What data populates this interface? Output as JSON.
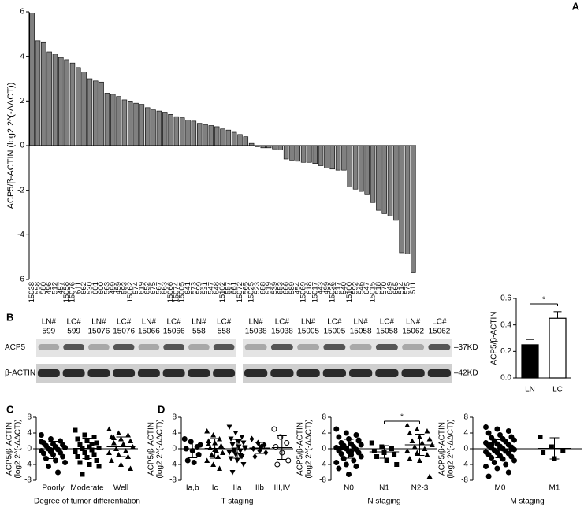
{
  "chart_data": [
    {
      "type": "bar",
      "panel": "A",
      "ylabel": "ACP5/β-ACTIN (log2 2^(-ΔΔCT))",
      "color": "#808080",
      "categories": [
        "15038",
        "558",
        "580",
        "496",
        "512",
        "457",
        "15058",
        "15076",
        "611",
        "662",
        "530",
        "601",
        "600",
        "563",
        "499",
        "459",
        "593",
        "15062",
        "574",
        "619",
        "652",
        "675",
        "567",
        "663",
        "15066",
        "15074",
        "15005",
        "641",
        "573",
        "599",
        "531",
        "547",
        "648",
        "15102",
        "557",
        "661",
        "15072",
        "565",
        "15025",
        "523",
        "688",
        "519",
        "539",
        "653",
        "666",
        "589",
        "454",
        "15069",
        "618",
        "15017",
        "443",
        "499",
        "15036",
        "517",
        "540",
        "15100",
        "592",
        "546",
        "647",
        "15015",
        "518",
        "570",
        "649",
        "665",
        "514",
        "575",
        "511"
      ],
      "values": [
        5.95,
        4.7,
        4.65,
        4.2,
        4.1,
        3.95,
        3.85,
        3.7,
        3.5,
        3.3,
        3.0,
        2.9,
        2.85,
        2.35,
        2.3,
        2.2,
        2.05,
        2.0,
        1.9,
        1.85,
        1.7,
        1.6,
        1.55,
        1.5,
        1.4,
        1.3,
        1.25,
        1.15,
        1.1,
        1.0,
        0.95,
        0.9,
        0.85,
        0.75,
        0.7,
        0.6,
        0.5,
        0.4,
        0.1,
        -0.05,
        -0.1,
        -0.1,
        -0.15,
        -0.2,
        -0.6,
        -0.65,
        -0.7,
        -0.75,
        -0.75,
        -0.8,
        -0.9,
        -1.0,
        -1.05,
        -1.1,
        -1.1,
        -1.85,
        -1.95,
        -2.05,
        -2.2,
        -2.55,
        -2.9,
        -3.05,
        -3.15,
        -3.35,
        -4.8,
        -4.85,
        -5.7
      ],
      "ylim": [
        -6,
        6
      ],
      "yticks": [
        -6,
        -4,
        -2,
        0,
        2,
        4,
        6
      ]
    },
    {
      "type": "blot",
      "panel": "B",
      "lanes": [
        [
          "LN#",
          "599"
        ],
        [
          "LC#",
          "599"
        ],
        [
          "LN#",
          "15076"
        ],
        [
          "LC#",
          "15076"
        ],
        [
          "LN#",
          "15066"
        ],
        [
          "LC#",
          "15066"
        ],
        [
          "LN#",
          "558"
        ],
        [
          "LC#",
          "558"
        ],
        [
          "LN#",
          "15038"
        ],
        [
          "LC#",
          "15038"
        ],
        [
          "LN#",
          "15005"
        ],
        [
          "LC#",
          "15005"
        ],
        [
          "LN#",
          "15058"
        ],
        [
          "LC#",
          "15058"
        ],
        [
          "LN#",
          "15062"
        ],
        [
          "LC#",
          "15062"
        ]
      ],
      "rows": [
        "ACP5",
        "β-ACTIN"
      ],
      "sizes": [
        "–37KD",
        "–42KD"
      ]
    },
    {
      "type": "bar",
      "ylabel": "ACP5/β-ACTIN",
      "categories": [
        "LN",
        "LC"
      ],
      "values": [
        0.25,
        0.45
      ],
      "errors": [
        0.04,
        0.05
      ],
      "colors": [
        "#000000",
        "#ffffff"
      ],
      "ylim": [
        0,
        0.6
      ],
      "yticks": [
        {
          "value": 0,
          "label": "0.0"
        },
        0.2,
        0.4,
        0.6
      ],
      "significance": "*"
    },
    {
      "type": "strip",
      "panel": "C",
      "ylabel": [
        "ACP5/β-ACTIN",
        "(log2 2^(-ΔΔCT))"
      ],
      "xlabel": "Degree of tumor differentiation",
      "ylim": [
        -8,
        8
      ],
      "yticks": [
        -8,
        -4,
        0,
        4,
        8
      ],
      "groups": [
        {
          "name": "Poorly",
          "marker": "circle",
          "values": [
            3.5,
            2.5,
            2,
            1.5,
            1.2,
            1,
            0.8,
            0.5,
            0.3,
            0,
            -0.2,
            -0.5,
            -0.8,
            -1,
            -1.2,
            -1.5,
            -2,
            -2.5,
            -3,
            -3.5,
            -4.5,
            -6,
            1.8,
            -0.3
          ],
          "mean": -0.3,
          "sd": 2.2
        },
        {
          "name": "Moderate",
          "marker": "square",
          "values": [
            4.7,
            3.5,
            3,
            2.5,
            2,
            1.5,
            1,
            0.5,
            0.2,
            0,
            -0.3,
            -0.8,
            -1,
            -1.5,
            -2,
            -2.2,
            -3,
            -3.5,
            -4,
            -4.5,
            -6.5,
            1.2,
            -0.5
          ],
          "mean": 0.1,
          "sd": 2.6
        },
        {
          "name": "Well",
          "marker": "triangle",
          "values": [
            5,
            4,
            3.5,
            3,
            2.5,
            2,
            1.5,
            1,
            0.5,
            0,
            -0.5,
            -1,
            -1.5,
            -2,
            -3,
            -4,
            -5,
            2.8,
            1.2
          ],
          "mean": 0.5,
          "sd": 2.5
        }
      ]
    },
    {
      "type": "strip",
      "panel": "D",
      "ylabel": [
        "ACP5/β-ACTIN",
        "(log2 2^(-ΔΔCT))"
      ],
      "xlabel": "T staging",
      "ylim": [
        -8,
        8
      ],
      "yticks": [
        -8,
        -4,
        0,
        4,
        8
      ],
      "groups": [
        {
          "name": "Ia,b",
          "marker": "circle",
          "values": [
            2.5,
            1.8,
            0.5,
            0,
            -0.5,
            -1.5,
            -3,
            -3.5,
            1
          ],
          "mean": -0.3,
          "sd": 2
        },
        {
          "name": "Ic",
          "marker": "triangle",
          "values": [
            4.5,
            3.5,
            2.5,
            2,
            1.5,
            0.8,
            0.2,
            -0.5,
            -1,
            -1.5,
            -2,
            -3,
            -4,
            -5,
            1.2,
            -0.2
          ],
          "mean": 0.1,
          "sd": 2.5
        },
        {
          "name": "IIa",
          "marker": "triangle-down",
          "values": [
            5.5,
            4,
            3,
            2.5,
            2,
            1.5,
            1,
            0.5,
            0,
            -0.3,
            -0.6,
            -1,
            -1.5,
            -2,
            -2.5,
            -3,
            -4,
            -6,
            1.8,
            0.3,
            -0.8,
            -1.8
          ],
          "mean": 0,
          "sd": 2.4
        },
        {
          "name": "IIb",
          "marker": "diamond",
          "values": [
            2.5,
            1.5,
            1,
            0,
            -0.5,
            -1,
            -2,
            0.5
          ],
          "mean": 0.2,
          "sd": 1.4
        },
        {
          "name": "III,IV",
          "marker": "circle-open",
          "values": [
            5,
            3,
            1.5,
            0.5,
            -1,
            -3,
            -4
          ],
          "mean": 0.3,
          "sd": 3
        }
      ]
    },
    {
      "type": "strip",
      "ylabel": [
        "ACP5/β-ACTIN",
        "(log2 2^(-ΔΔCT))"
      ],
      "xlabel": "N staging",
      "ylim": [
        -8,
        8
      ],
      "yticks": [
        -8,
        -4,
        0,
        4,
        8
      ],
      "significance": "*",
      "groups": [
        {
          "name": "N0",
          "marker": "circle",
          "values": [
            5,
            4,
            3.5,
            3,
            2.5,
            2,
            1.5,
            1.2,
            1,
            0.8,
            0.5,
            0.3,
            0,
            -0.2,
            -0.5,
            -0.8,
            -1,
            -1.3,
            -1.5,
            -2,
            -2.5,
            -3,
            -3.5,
            -4,
            -4.5,
            -5,
            -6.5,
            2.2,
            0.2,
            -0.7
          ],
          "mean": 0,
          "sd": 2.4
        },
        {
          "name": "N1",
          "marker": "square",
          "values": [
            1.5,
            0.5,
            0,
            -0.5,
            -1,
            -1.5,
            -2,
            -3,
            -4
          ],
          "mean": -0.8,
          "sd": 1.6
        },
        {
          "name": "N2-3",
          "marker": "triangle",
          "values": [
            6,
            5,
            4.5,
            4,
            3,
            2.5,
            2,
            1.5,
            1,
            0.5,
            0,
            -0.5,
            -1,
            -1.5,
            -2.5,
            -3,
            -7
          ],
          "mean": 1,
          "sd": 2.7
        }
      ]
    },
    {
      "type": "strip",
      "ylabel": [
        "ACP5/β-ACTIN",
        "(log2 2^(-ΔΔCT))"
      ],
      "xlabel": "M staging",
      "ylim": [
        -8,
        8
      ],
      "yticks": [
        -8,
        -4,
        0,
        4,
        8
      ],
      "groups": [
        {
          "name": "M0",
          "marker": "circle",
          "values": [
            5.5,
            5,
            4.5,
            4,
            3.5,
            3,
            2.8,
            2.5,
            2.2,
            2,
            1.8,
            1.5,
            1.2,
            1,
            0.8,
            0.6,
            0.4,
            0.2,
            0,
            -0.2,
            -0.4,
            -0.6,
            -0.8,
            -1,
            -1.2,
            -1.5,
            -1.8,
            -2,
            -2.3,
            -2.6,
            -3,
            -3.5,
            -4,
            -4.5,
            -5,
            -6,
            -7,
            0.1,
            -0.1,
            1.1
          ],
          "mean": 0,
          "sd": 2.3
        },
        {
          "name": "M1",
          "marker": "square",
          "values": [
            3,
            0.5,
            -0.5,
            -1,
            -2.5
          ],
          "mean": 0.1,
          "sd": 2.7
        }
      ]
    }
  ]
}
